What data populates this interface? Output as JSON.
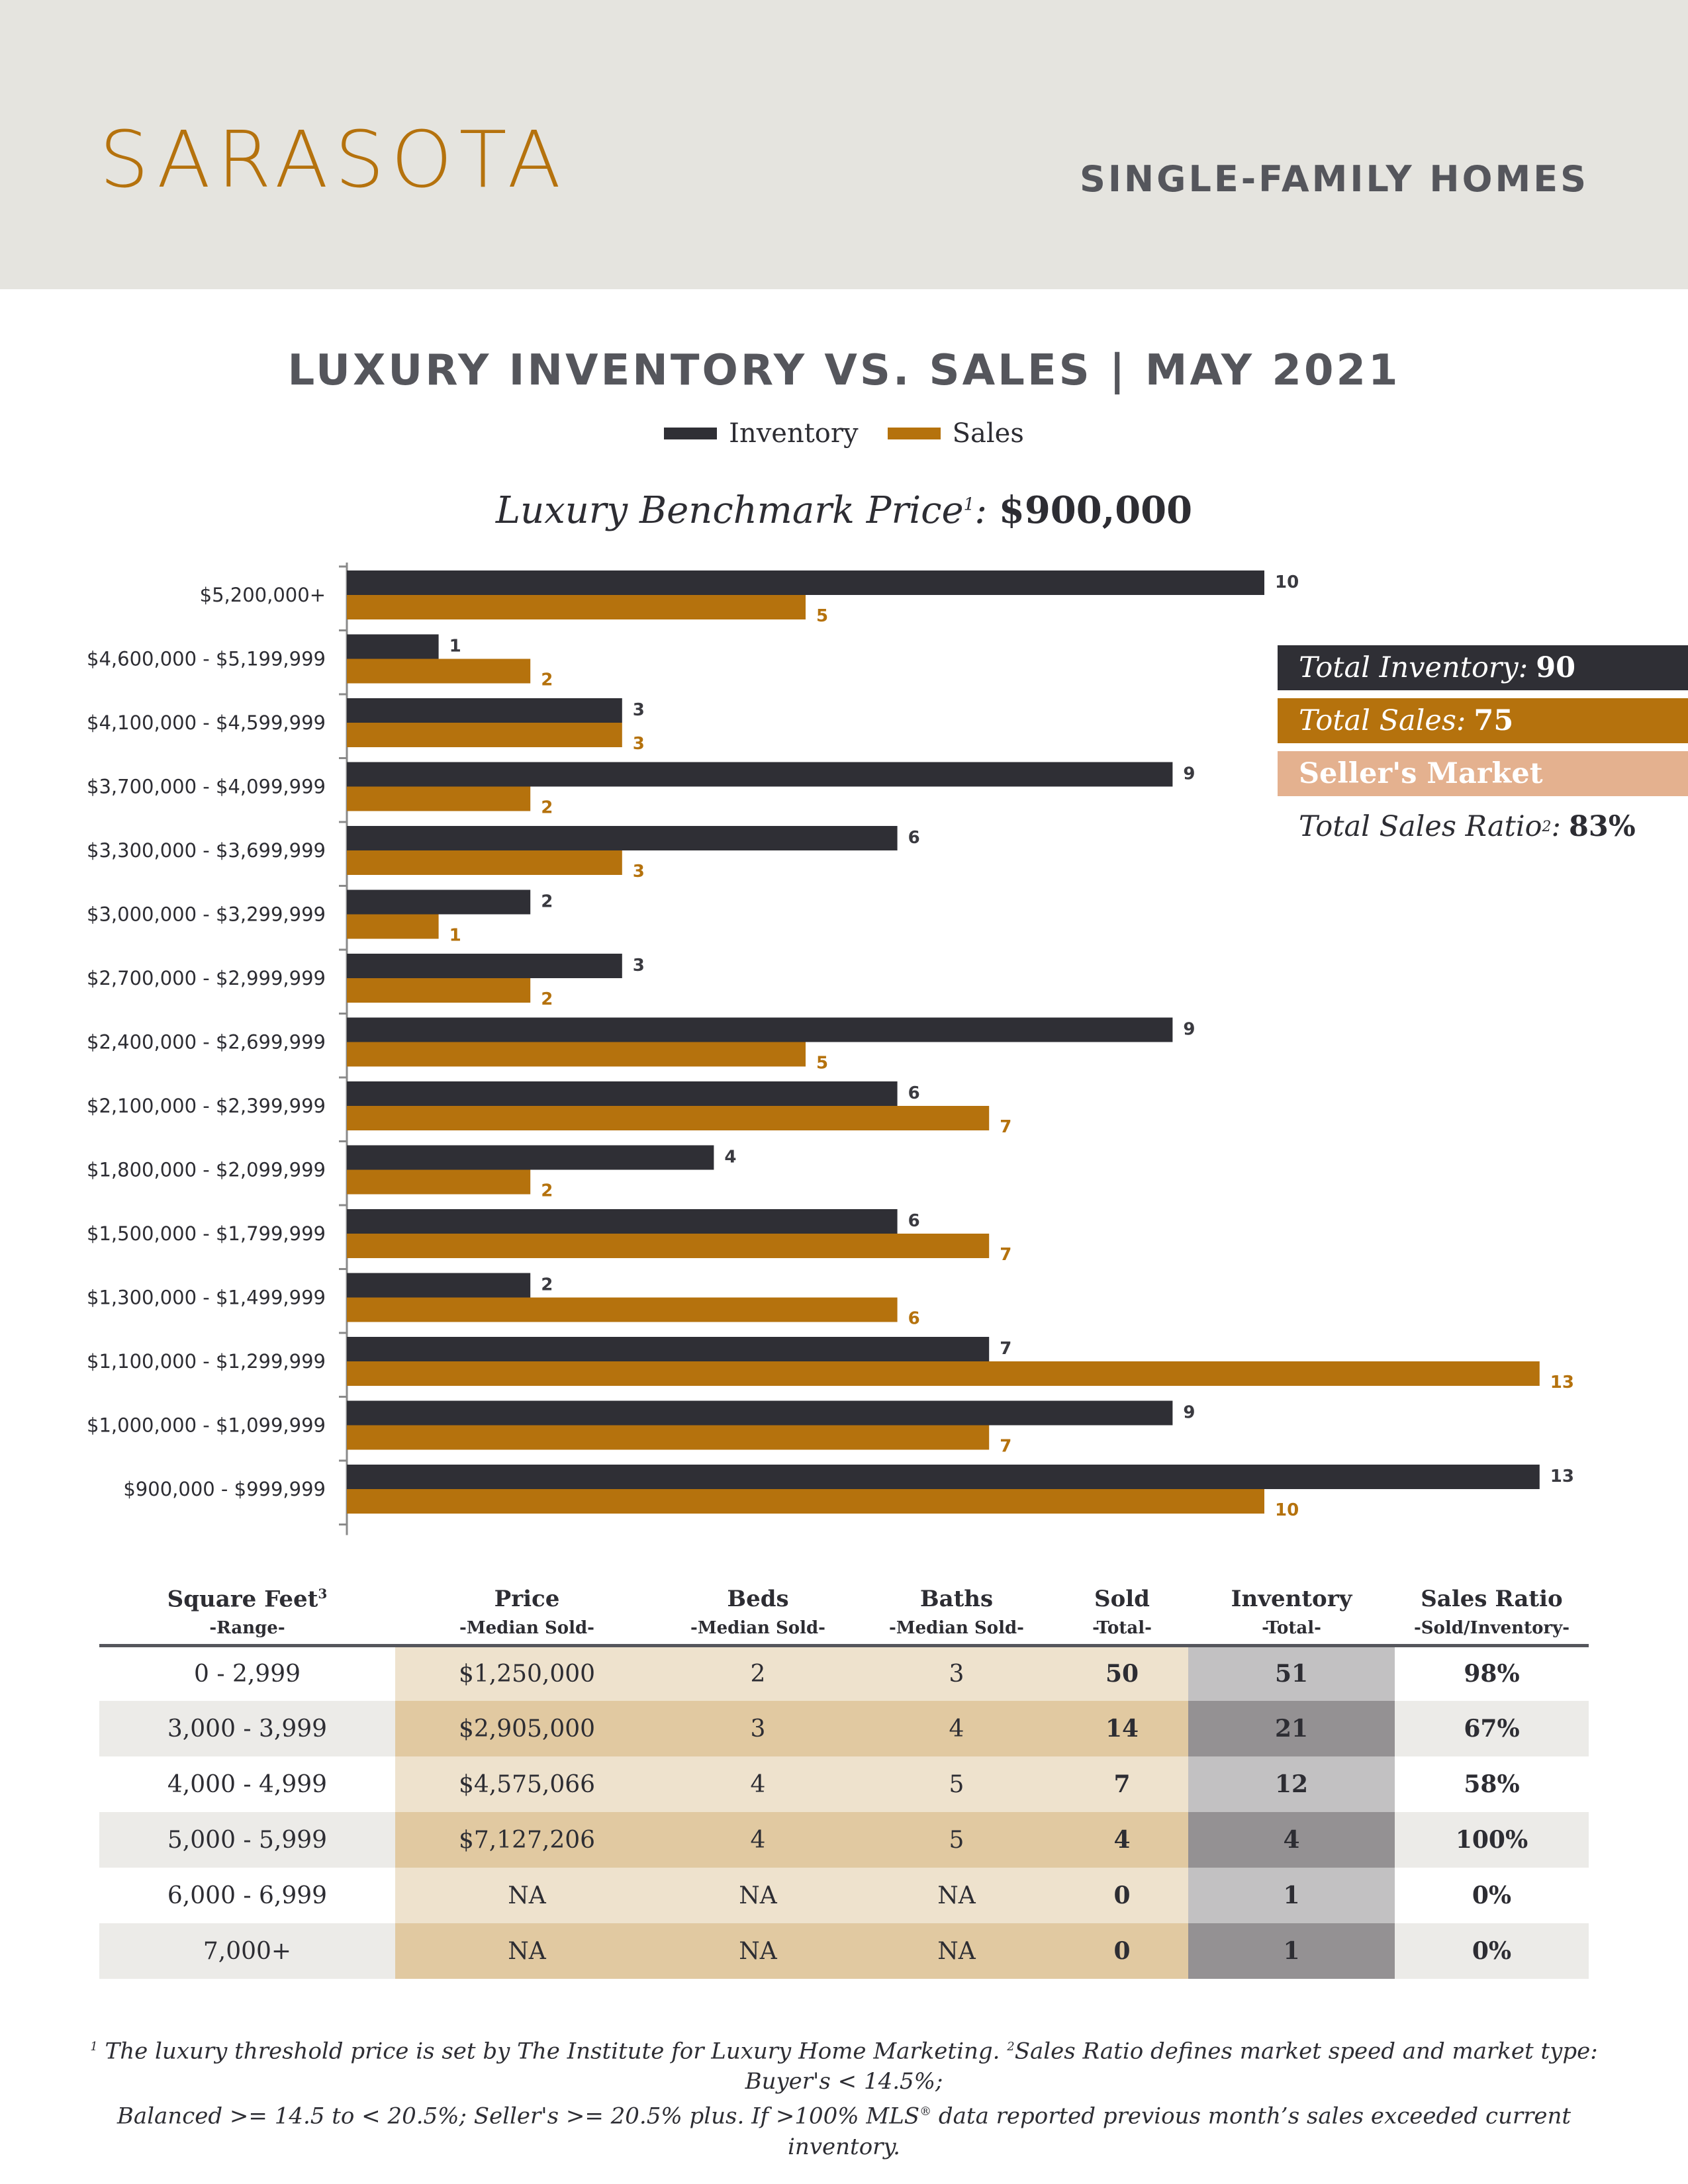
{
  "header": {
    "city": "SARASOTA",
    "segment": "SINGLE-FAMILY HOMES"
  },
  "chart_title": "LUXURY INVENTORY VS. SALES | MAY 2021",
  "legend": {
    "inventory": "Inventory",
    "sales": "Sales"
  },
  "benchmark": {
    "label": "Luxury Benchmark Price",
    "sup": "1",
    "colon": ": ",
    "value": "$900,000"
  },
  "colors": {
    "inventory": "#2f2f35",
    "sales": "#b5720d",
    "sellers_market": "#e4b18f"
  },
  "chart_data": {
    "type": "bar",
    "orientation": "horizontal",
    "categories": [
      "$5,200,000+",
      "$4,600,000 - $5,199,999",
      "$4,100,000 - $4,599,999",
      "$3,700,000 - $4,099,999",
      "$3,300,000 - $3,699,999",
      "$3,000,000 - $3,299,999",
      "$2,700,000 - $2,999,999",
      "$2,400,000 - $2,699,999",
      "$2,100,000 - $2,399,999",
      "$1,800,000 - $2,099,999",
      "$1,500,000 - $1,799,999",
      "$1,300,000 - $1,499,999",
      "$1,100,000 - $1,299,999",
      "$1,000,000 - $1,099,999",
      "$900,000 - $999,999"
    ],
    "series": [
      {
        "name": "Inventory",
        "values": [
          10,
          1,
          3,
          9,
          6,
          2,
          3,
          9,
          6,
          4,
          6,
          2,
          7,
          9,
          13
        ]
      },
      {
        "name": "Sales",
        "values": [
          5,
          2,
          3,
          2,
          3,
          1,
          2,
          5,
          7,
          2,
          7,
          6,
          13,
          7,
          10
        ]
      }
    ],
    "xlim": [
      0,
      13
    ],
    "data_labels": true,
    "legend": "top"
  },
  "summary": {
    "total_inventory_label": "Total Inventory:",
    "total_inventory": "90",
    "total_sales_label": "Total Sales:",
    "total_sales": "75",
    "market": "Seller's Market",
    "ratio_label": "Total Sales Ratio",
    "ratio_sup": "2",
    "ratio_colon": ":",
    "ratio": "83%"
  },
  "table": {
    "headers": [
      "Square Feet",
      "Price",
      "Beds",
      "Baths",
      "Sold",
      "Inventory",
      "Sales Ratio"
    ],
    "header_sup": "3",
    "subheaders": [
      "-Range-",
      "-Median Sold-",
      "-Median Sold-",
      "-Median Sold-",
      "-Total-",
      "-Total-",
      "-Sold/Inventory-"
    ],
    "rows": [
      [
        "0 - 2,999",
        "$1,250,000",
        "2",
        "3",
        "50",
        "51",
        "98%"
      ],
      [
        "3,000 - 3,999",
        "$2,905,000",
        "3",
        "4",
        "14",
        "21",
        "67%"
      ],
      [
        "4,000 - 4,999",
        "$4,575,066",
        "4",
        "5",
        "7",
        "12",
        "58%"
      ],
      [
        "5,000 - 5,999",
        "$7,127,206",
        "4",
        "5",
        "4",
        "4",
        "100%"
      ],
      [
        "6,000 - 6,999",
        "NA",
        "NA",
        "NA",
        "0",
        "1",
        "0%"
      ],
      [
        "7,000+",
        "NA",
        "NA",
        "NA",
        "0",
        "1",
        "0%"
      ]
    ]
  },
  "footnote": {
    "sup1": "1",
    "text1": " The luxury threshold price is set by The Institute for Luxury Home Marketing. ",
    "sup2": "2",
    "text2": "Sales Ratio defines market speed and market type: Buyer's < 14.5%;",
    "line2a": "Balanced >= 14.5 to < 20.5%; Seller's >= 20.5% plus. If >100% MLS",
    "reg": "®",
    "line2b": " data reported previous month’s sales exceeded current inventory."
  }
}
